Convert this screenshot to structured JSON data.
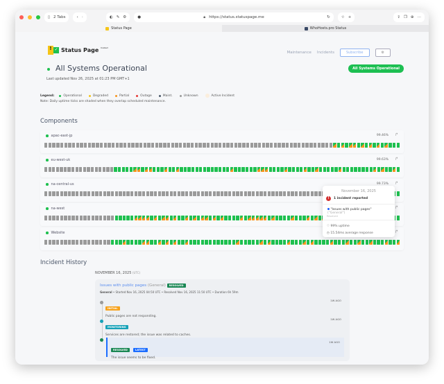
{
  "browser": {
    "tabs_count": "2 Tabs",
    "url": "https://status.statuspage.me",
    "tabs": [
      {
        "label": "Status Page",
        "active": true
      },
      {
        "label": "WhoHosts.pro Status",
        "active": false
      }
    ]
  },
  "header": {
    "logo_text": "Status Page",
    "logo_sup": "hosted",
    "nav": [
      "Maintenance",
      "Incidents"
    ],
    "subscribe": "Subscribe",
    "settings_icon": "gear-icon"
  },
  "status": {
    "title": "All Systems Operational",
    "updated": "Last updated Nov 26, 2025 at 01:23 PM GMT+1",
    "badge": "All Systems Operational"
  },
  "legend": {
    "label": "Legend:",
    "items": [
      {
        "label": "Operational",
        "color": "#1ec04f"
      },
      {
        "label": "Degraded",
        "color": "#f5c518"
      },
      {
        "label": "Partial",
        "color": "#f7941d"
      },
      {
        "label": "Outage",
        "color": "#e53935"
      },
      {
        "label": "Maint.",
        "color": "#4a5a6a"
      },
      {
        "label": "Unknown",
        "color": "#9a9a9a"
      },
      {
        "label": "Active Incident",
        "color": "#fbeedd"
      }
    ],
    "note": "Note: Daily uptime ticks are shaded when they overlap scheduled maintenance."
  },
  "components_title": "Components",
  "components": [
    {
      "name": "apac-east-jp",
      "uptime": "99.46%",
      "days": "gggggggggggggggggggggggggggggggggggggggggggggggggggggggggggggggggggggggggpopoppopopopopooo"
    },
    {
      "name": "eu-west-uk",
      "uptime": "99.63%",
      "days": "ggggggggggggggggggoooooppoppooopoopooooooooooooopoooooopppoooopoooopoopooooopoooooooopopoopo"
    },
    {
      "name": "na-central-us",
      "uptime": "99.73%",
      "days": "gggggggggggggggggggggggggggggggggggggggggggggggggggggggggggggggggggggggggggggggggggggggggoo"
    },
    {
      "name": "na-west",
      "uptime": "99.71%",
      "days": "ggggggggggggggggggoooooppppopoppopoopopoppopopoooopopppppopoooopooopopoppoooopoooopoooooooo"
    },
    {
      "name": "Website",
      "uptime": "99.80%",
      "days": "gggggggggggggggggooopooooppoopopopoopoooooooooooopooooopopoooopooopopoooopooopoopoopooopoop"
    }
  ],
  "tooltip": {
    "date": "November 16, 2025",
    "count": "1 incident reported",
    "incident": "\"Issues with public pages\"",
    "incident_group": "(\"General\")",
    "incident_state": "Resolved",
    "uptime": "99% uptime",
    "response": "15.54ms average response"
  },
  "history": {
    "title": "Incident History",
    "date": "NOVEMBER 16, 2025",
    "tz": "(UTC)",
    "incident": {
      "title": "Issues with public pages",
      "group": "(General)",
      "badge": "RESOLVED",
      "meta_group": "General",
      "meta": " • Started Nov 16, 2025 04:50 UTC • Resolved Nov 16, 2025 11:50 UTC • Duration 6h 59m",
      "updates": [
        {
          "tag": "INITIAL",
          "tag_color": "#f7a21b",
          "dot": "#9a9a9a",
          "text": "Public pages are not responding.",
          "ago": "1W AGO"
        },
        {
          "tag": "MONITORING",
          "tag_color": "#17a2b8",
          "dot": "#17a2b8",
          "text": "Services are restored; the issue was related to caches.",
          "ago": "1W AGO"
        },
        {
          "tag": "RESOLVED",
          "tag2": "LATEST",
          "tag_color": "#198754",
          "dot": "#198754",
          "text": "The issue seems to be fixed.",
          "ago": "1W AGO"
        }
      ]
    }
  }
}
